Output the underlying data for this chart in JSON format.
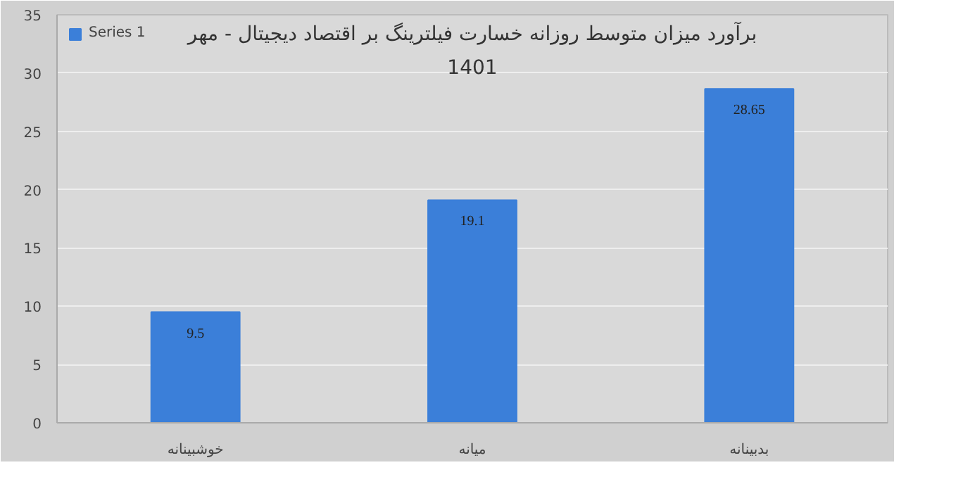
{
  "chart_data": {
    "type": "bar",
    "title": "برآورد میزان متوسط روزانه خسارت فیلترینگ بر اقتصاد دیجیتال - مهر 1401",
    "categories": [
      "خوشبینانه",
      "میانه",
      "بدبینانه"
    ],
    "series": [
      {
        "name": "Series 1",
        "color": "#3b7fd9",
        "values": [
          9.5,
          19.1,
          28.65
        ]
      }
    ],
    "ylim": [
      0,
      35
    ],
    "yticks": [
      0,
      5,
      10,
      15,
      20,
      25,
      30,
      35
    ],
    "grid": "y",
    "legend": "top left",
    "data_labels": true
  }
}
